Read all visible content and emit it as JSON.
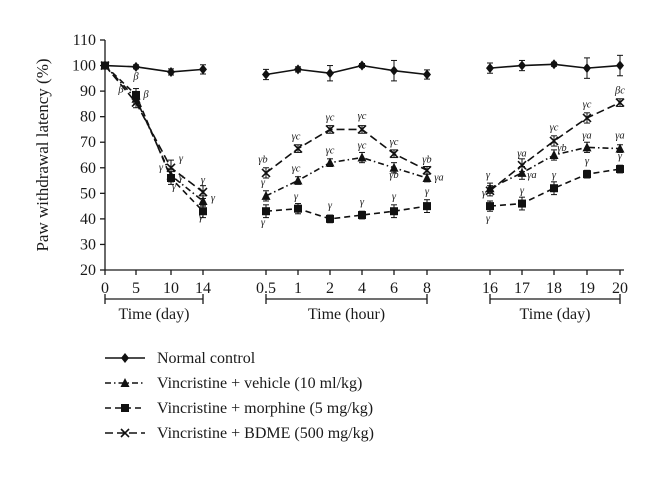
{
  "chart_data": {
    "type": "line",
    "ylabel": "Paw withdrawal latency (%)",
    "ylim": [
      20,
      110
    ],
    "yticks": [
      20,
      30,
      40,
      50,
      60,
      70,
      80,
      90,
      100,
      110
    ],
    "grid": false,
    "legend_position": "bottom-left",
    "x_groups": [
      {
        "label": "Time (day)",
        "ticks": [
          "0",
          "5",
          "10",
          "14"
        ]
      },
      {
        "label": "Time (hour)",
        "ticks": [
          "0.5",
          "1",
          "2",
          "4",
          "6",
          "8"
        ]
      },
      {
        "label": "Time (day)",
        "ticks": [
          "16",
          "17",
          "18",
          "19",
          "20"
        ]
      }
    ],
    "series": [
      {
        "name": "Normal control",
        "marker": "diamond",
        "dash": "none",
        "segments": [
          {
            "group": 0,
            "values": [
              100,
              99.5,
              97.5,
              98.5
            ],
            "errors": [
              0.5,
              0.8,
              1.2,
              1.8
            ]
          },
          {
            "group": 1,
            "values": [
              96.5,
              98.5,
              97,
              100,
              98,
              96.5
            ],
            "errors": [
              2,
              1,
              3,
              0.8,
              4,
              1.8
            ]
          },
          {
            "group": 2,
            "values": [
              99,
              100,
              100.5,
              99,
              100
            ],
            "errors": [
              2,
              2,
              0.8,
              4,
              4
            ]
          }
        ]
      },
      {
        "name": "Vincristine + vehicle (10 ml/kg)",
        "marker": "triangle",
        "dash": "dashdot",
        "segments": [
          {
            "group": 0,
            "values": [
              100,
              87,
              57,
              47
            ],
            "errors": [
              0.5,
              2,
              2.5,
              2
            ]
          },
          {
            "group": 1,
            "values": [
              49,
              55,
              62,
              64,
              60,
              56
            ],
            "errors": [
              2,
              1.5,
              1.5,
              2,
              2,
              1.5
            ]
          },
          {
            "group": 2,
            "values": [
              52,
              58,
              65,
              68,
              67.5
            ],
            "errors": [
              2,
              2.5,
              2,
              2,
              1.5
            ]
          }
        ]
      },
      {
        "name": "Vincristine + morphine (5 mg/kg)",
        "marker": "square",
        "dash": "dash",
        "segments": [
          {
            "group": 0,
            "values": [
              100,
              88.5,
              56,
              43
            ],
            "errors": [
              0.5,
              2.5,
              2.5,
              2.5
            ]
          },
          {
            "group": 1,
            "values": [
              43,
              44,
              40,
              41.5,
              43,
              45
            ],
            "errors": [
              2.5,
              2,
              1.5,
              1.5,
              2.5,
              2.5
            ]
          },
          {
            "group": 2,
            "values": [
              45,
              46,
              52,
              57.5,
              59.5
            ],
            "errors": [
              2,
              2.5,
              2.5,
              1.5,
              1.5
            ]
          }
        ]
      },
      {
        "name": "Vincristine + BDME (500 mg/kg)",
        "marker": "x",
        "dash": "longdash",
        "segments": [
          {
            "group": 0,
            "values": [
              100,
              85.5,
              60,
              50.5
            ],
            "errors": [
              0.5,
              2,
              3,
              2.5
            ]
          },
          {
            "group": 1,
            "values": [
              58,
              67.5,
              75,
              75,
              65.5,
              59
            ],
            "errors": [
              2,
              1.5,
              1.5,
              1.5,
              1.5,
              1.5
            ]
          },
          {
            "group": 2,
            "values": [
              51,
              61,
              70.5,
              79.5,
              85.5
            ],
            "errors": [
              2,
              2.5,
              2,
              2,
              1.5
            ]
          }
        ]
      }
    ],
    "annotations": [
      {
        "group": 0,
        "tick": 1,
        "y": 94.5,
        "text": "β"
      },
      {
        "group": 0,
        "tick": 1,
        "y": 89.5,
        "dx": -15,
        "text": "β"
      },
      {
        "group": 0,
        "tick": 1,
        "y": 87.5,
        "dx": 10,
        "text": "β"
      },
      {
        "group": 0,
        "tick": 2,
        "y": 62.5,
        "dx": 10,
        "text": "γ"
      },
      {
        "group": 0,
        "tick": 2,
        "y": 59,
        "dx": -10,
        "text": "γ"
      },
      {
        "group": 0,
        "tick": 2,
        "y": 55,
        "dx": 10,
        "text": "γ"
      },
      {
        "group": 0,
        "tick": 2,
        "y": 51.5,
        "dx": 3,
        "text": "γ"
      },
      {
        "group": 0,
        "tick": 3,
        "y": 54,
        "dx": 0,
        "text": "γ"
      },
      {
        "group": 0,
        "tick": 3,
        "y": 47,
        "dx": 10,
        "text": "γ"
      },
      {
        "group": 0,
        "tick": 3,
        "y": 39.5,
        "dx": -2,
        "text": "γ"
      },
      {
        "group": 1,
        "tick": 0,
        "y": 62,
        "dx": -3,
        "text": "γb"
      },
      {
        "group": 1,
        "tick": 0,
        "y": 53,
        "dx": -3,
        "text": "γ"
      },
      {
        "group": 1,
        "tick": 0,
        "y": 37.5,
        "dx": -3,
        "text": "γ"
      },
      {
        "group": 1,
        "tick": 1,
        "y": 71,
        "dx": -2,
        "text": "γc"
      },
      {
        "group": 1,
        "tick": 1,
        "y": 58.5,
        "dx": -2,
        "text": "γc"
      },
      {
        "group": 1,
        "tick": 1,
        "y": 47.5,
        "dx": -2,
        "text": "γ"
      },
      {
        "group": 1,
        "tick": 2,
        "y": 78.5,
        "dx": 0,
        "text": "γc"
      },
      {
        "group": 1,
        "tick": 2,
        "y": 65.5,
        "dx": 0,
        "text": "γc"
      },
      {
        "group": 1,
        "tick": 2,
        "y": 44,
        "dx": 0,
        "text": "γ"
      },
      {
        "group": 1,
        "tick": 3,
        "y": 79,
        "dx": 0,
        "text": "γc"
      },
      {
        "group": 1,
        "tick": 3,
        "y": 67.5,
        "dx": 0,
        "text": "γc"
      },
      {
        "group": 1,
        "tick": 3,
        "y": 45.5,
        "dx": 0,
        "text": "γ"
      },
      {
        "group": 1,
        "tick": 4,
        "y": 69,
        "dx": 0,
        "text": "γc"
      },
      {
        "group": 1,
        "tick": 4,
        "y": 56,
        "dx": 0,
        "text": "γb"
      },
      {
        "group": 1,
        "tick": 4,
        "y": 47.5,
        "dx": 0,
        "text": "γ"
      },
      {
        "group": 1,
        "tick": 5,
        "y": 62,
        "dx": 0,
        "text": "γb"
      },
      {
        "group": 1,
        "tick": 5,
        "y": 55,
        "dx": 12,
        "text": "γa"
      },
      {
        "group": 1,
        "tick": 5,
        "y": 49.5,
        "dx": 0,
        "text": "γ"
      },
      {
        "group": 2,
        "tick": 0,
        "y": 56,
        "dx": -2,
        "text": "γ"
      },
      {
        "group": 2,
        "tick": 0,
        "y": 49,
        "dx": -6,
        "text": "γ"
      },
      {
        "group": 2,
        "tick": 0,
        "y": 39,
        "dx": -2,
        "text": "γ"
      },
      {
        "group": 2,
        "tick": 1,
        "y": 64.5,
        "dx": 0,
        "text": "γa"
      },
      {
        "group": 2,
        "tick": 1,
        "y": 56,
        "dx": 10,
        "text": "γa"
      },
      {
        "group": 2,
        "tick": 1,
        "y": 50,
        "dx": 0,
        "text": "γ"
      },
      {
        "group": 2,
        "tick": 2,
        "y": 74.5,
        "dx": 0,
        "text": "γc"
      },
      {
        "group": 2,
        "tick": 2,
        "y": 66.5,
        "dx": 8,
        "text": "γb"
      },
      {
        "group": 2,
        "tick": 2,
        "y": 56,
        "dx": 0,
        "text": "γ"
      },
      {
        "group": 2,
        "tick": 3,
        "y": 83.5,
        "dx": 0,
        "text": "γc"
      },
      {
        "group": 2,
        "tick": 3,
        "y": 71.5,
        "dx": 0,
        "text": "γa"
      },
      {
        "group": 2,
        "tick": 3,
        "y": 61.5,
        "dx": 0,
        "text": "γ"
      },
      {
        "group": 2,
        "tick": 4,
        "y": 89,
        "dx": 0,
        "text": "βc"
      },
      {
        "group": 2,
        "tick": 4,
        "y": 71.5,
        "dx": 0,
        "text": "γa"
      },
      {
        "group": 2,
        "tick": 4,
        "y": 63.5,
        "dx": 0,
        "text": "γ"
      }
    ]
  }
}
